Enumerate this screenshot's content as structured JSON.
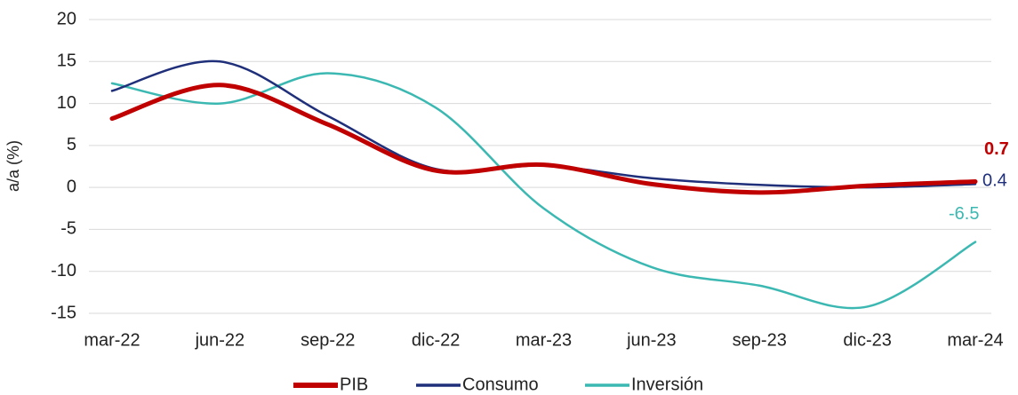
{
  "chart_data": {
    "type": "line",
    "y_label": "a/a (%)",
    "categories": [
      "mar-22",
      "jun-22",
      "sep-22",
      "dic-22",
      "mar-23",
      "jun-23",
      "sep-23",
      "dic-23",
      "mar-24"
    ],
    "series": [
      {
        "name": "PIB",
        "color": "#c00000",
        "values": [
          8.2,
          12.2,
          7.5,
          2.0,
          2.7,
          0.4,
          -0.6,
          0.2,
          0.7
        ]
      },
      {
        "name": "Consumo",
        "color": "#1f2f7a",
        "values": [
          11.5,
          15.0,
          8.5,
          2.2,
          2.6,
          1.1,
          0.3,
          0.0,
          0.4
        ]
      },
      {
        "name": "Inversión",
        "color": "#3cb8b2",
        "values": [
          12.4,
          10.0,
          13.6,
          9.5,
          -2.5,
          -9.5,
          -11.7,
          -14.2,
          -6.5
        ]
      }
    ],
    "ylim": [
      -15,
      20
    ],
    "yticks": [
      -15,
      -10,
      -5,
      0,
      5,
      10,
      15,
      20
    ],
    "grid": true,
    "legend": "bottom"
  }
}
